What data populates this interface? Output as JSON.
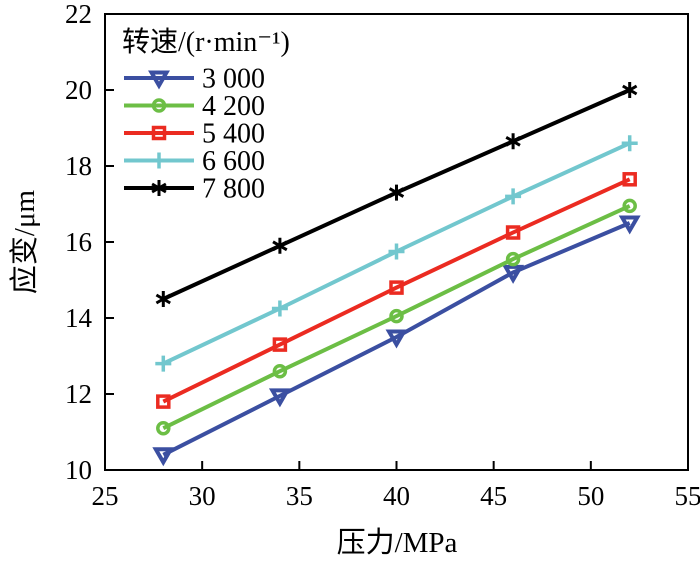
{
  "figure": {
    "background": "#ffffff",
    "frame_color": "#000000",
    "text_color": "#000000"
  },
  "chart_data": {
    "type": "line",
    "title": "",
    "xlabel": "压力/MPa",
    "ylabel": "应变/μm",
    "xlim": [
      25,
      55
    ],
    "ylim": [
      10,
      22
    ],
    "xticks": [
      25,
      30,
      35,
      40,
      45,
      50,
      55
    ],
    "yticks": [
      10,
      12,
      14,
      16,
      18,
      20,
      22
    ],
    "grid": false,
    "legend": {
      "title": "转速/(r·min⁻¹)",
      "position": "top-left"
    },
    "x": [
      28,
      34,
      40,
      46,
      52
    ],
    "series": [
      {
        "name": "3 000",
        "marker": "triangle-down",
        "color": "#3B4FA1",
        "values": [
          10.4,
          11.95,
          13.5,
          15.2,
          16.5
        ]
      },
      {
        "name": "4 200",
        "marker": "circle",
        "color": "#6CBE45",
        "values": [
          11.1,
          12.6,
          14.05,
          15.55,
          16.95
        ]
      },
      {
        "name": "5 400",
        "marker": "square",
        "color": "#EB2B21",
        "values": [
          11.8,
          13.3,
          14.8,
          16.25,
          17.65
        ]
      },
      {
        "name": "6 600",
        "marker": "plus",
        "color": "#72C7CE",
        "values": [
          12.8,
          14.25,
          15.75,
          17.2,
          18.6
        ]
      },
      {
        "name": "7 800",
        "marker": "asterisk",
        "color": "#000000",
        "values": [
          14.5,
          15.9,
          17.3,
          18.65,
          20.0
        ]
      }
    ]
  }
}
